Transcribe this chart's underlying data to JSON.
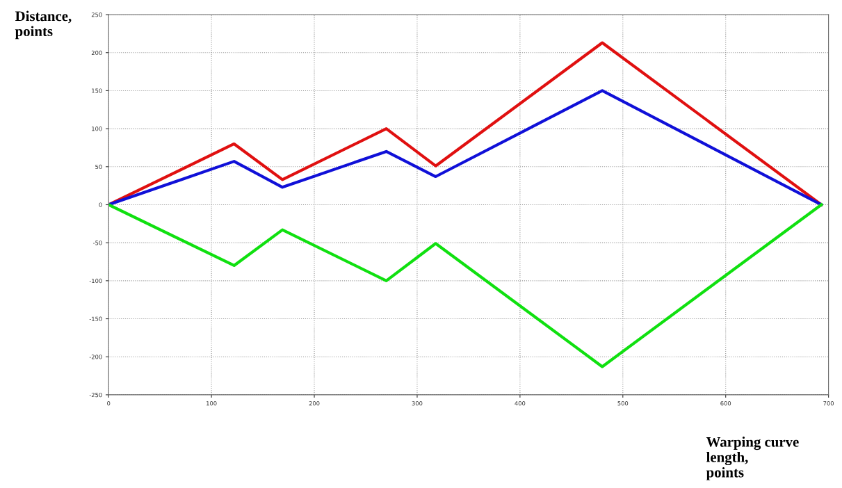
{
  "chart_data": {
    "type": "line",
    "xlabel": "Warping curve\nlength,\npoints",
    "ylabel": "Distance,\npoints",
    "xlim": [
      0,
      700
    ],
    "ylim": [
      -250,
      250
    ],
    "xticks": [
      0,
      100,
      200,
      300,
      400,
      500,
      600,
      700
    ],
    "yticks": [
      -250,
      -200,
      -150,
      -100,
      -50,
      0,
      50,
      100,
      150,
      200,
      250
    ],
    "grid": true,
    "legend": false,
    "marker": "none",
    "line_style": "solid",
    "series": [
      {
        "color": "#e01010",
        "x": [
          0,
          122,
          169,
          270,
          318,
          480,
          693
        ],
        "values": [
          0,
          80,
          33,
          100,
          51,
          213,
          0
        ]
      },
      {
        "color": "#1010d8",
        "x": [
          0,
          122,
          169,
          270,
          318,
          480,
          693
        ],
        "values": [
          0,
          57,
          23,
          70,
          37,
          150,
          0
        ]
      },
      {
        "color": "#10e010",
        "x": [
          0,
          122,
          169,
          270,
          318,
          480,
          693
        ],
        "values": [
          0,
          -80,
          -33,
          -100,
          -51,
          -213,
          0
        ]
      }
    ]
  }
}
